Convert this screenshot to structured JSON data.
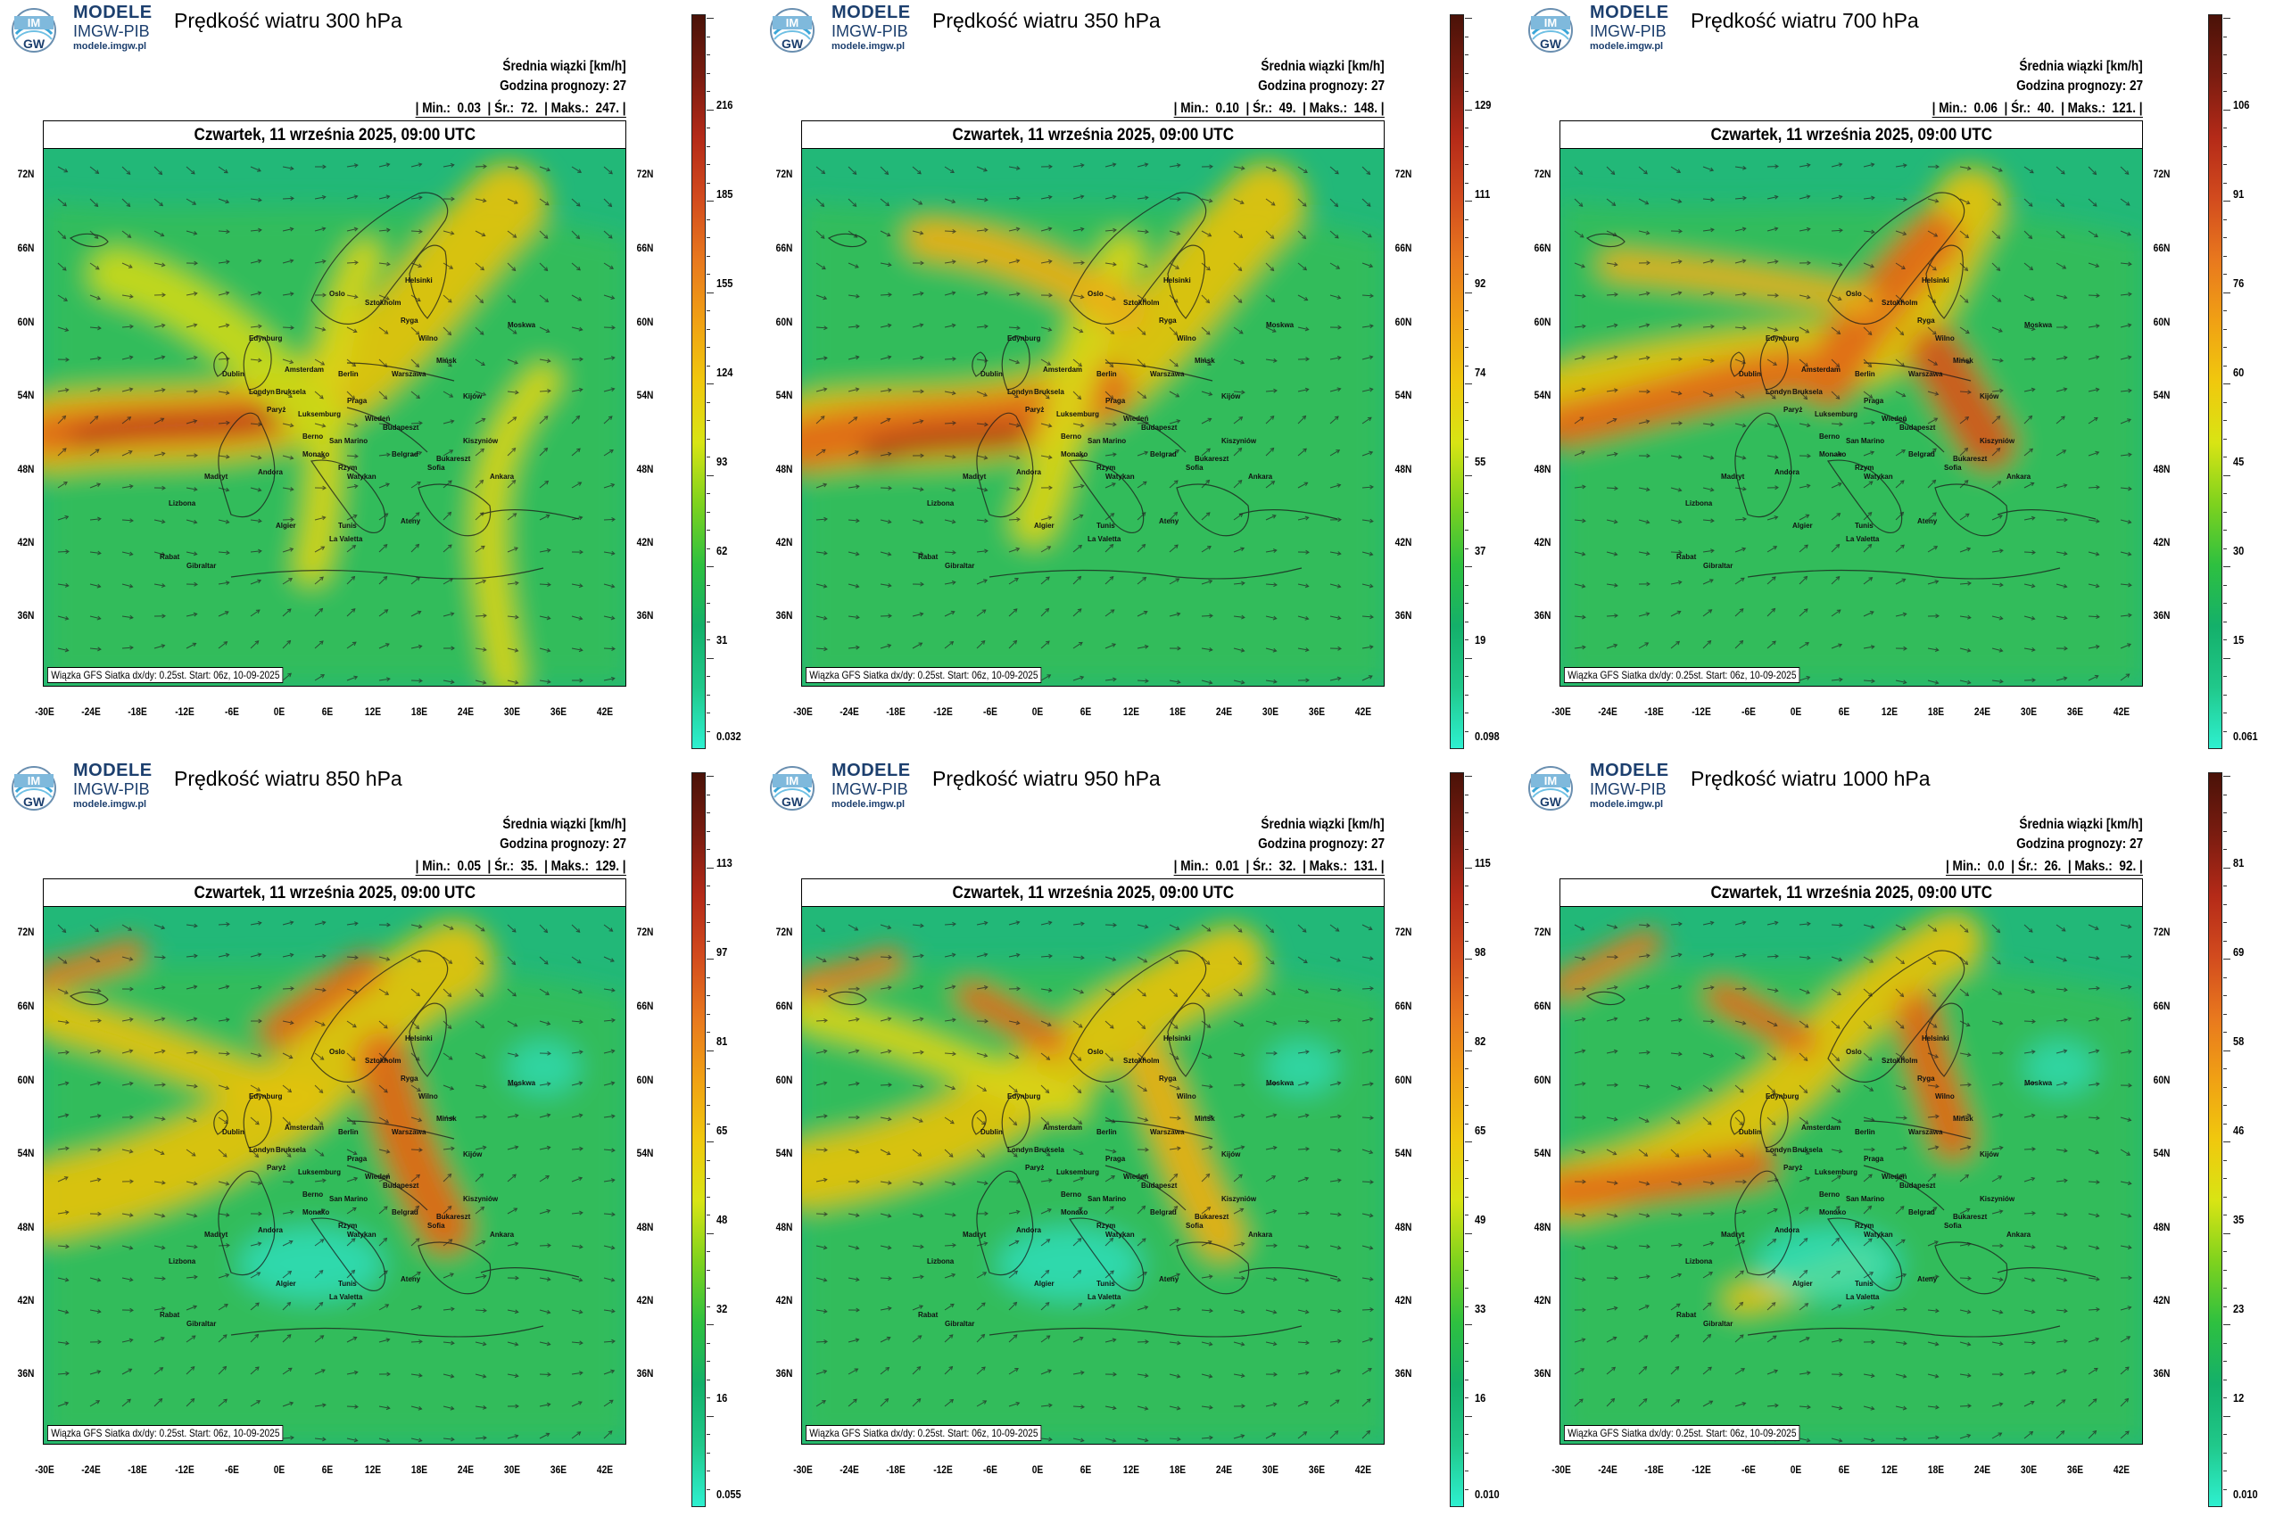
{
  "brand": {
    "line1": "MODELE",
    "line2": "IMGW-PIB",
    "line3": "modele.imgw.pl",
    "logo_text_top": "IM",
    "logo_text_bottom": "GW"
  },
  "common": {
    "avg_label": "Średnia wiązki [km/h]",
    "forecast_hour_label": "Godzina prognozy: 27",
    "date_text": "Czwartek, 11 września 2025, 09:00 UTC",
    "footer_text": "Wiązka GFS Siatka dx/dy: 0.25st. Start: 06z, 10-09-2025",
    "lat_labels": [
      "72N",
      "66N",
      "60N",
      "54N",
      "48N",
      "42N",
      "36N"
    ],
    "lon_labels": [
      "-30E",
      "-24E",
      "-18E",
      "-12E",
      "-6E",
      "0E",
      "6E",
      "12E",
      "18E",
      "24E",
      "30E",
      "36E",
      "42E"
    ],
    "cities": [
      "Oslo",
      "Helsinki",
      "Sztokholm",
      "Ryga",
      "Wilno",
      "Londyn",
      "Berlin",
      "Warszawa",
      "Amsterdam",
      "Bruksela",
      "Paryż",
      "Praga",
      "Luksemburg",
      "Wiedeń",
      "Budapeszt",
      "Berno",
      "Bukareszt",
      "Belgrad",
      "Rzym",
      "Madryt",
      "Lizbona",
      "Ankara",
      "Ateny",
      "Tunis",
      "Algier",
      "La Valetta",
      "Rabat",
      "Gibraltar",
      "Sofia",
      "Kiszyniów",
      "Kijów",
      "Mińsk",
      "Moskwa",
      "Dublin",
      "Edynburg",
      "Andora",
      "Monako",
      "San Marino",
      "Watykan"
    ]
  },
  "colorbar_colors": [
    "#2ef0d0",
    "#20c88a",
    "#14b06a",
    "#2ec040",
    "#7ed21e",
    "#d8e414",
    "#f0c80e",
    "#f0a014",
    "#e8781e",
    "#d24b1e",
    "#b42a18",
    "#7a1c10",
    "#4a1208"
  ],
  "panels": [
    {
      "title": "Prędkość wiatru 300 hPa",
      "min": "0.03",
      "avg": "72.",
      "max": "247.",
      "colorbar_labels": [
        "216",
        "185",
        "155",
        "124",
        "93",
        "62",
        "31",
        "0.032"
      ]
    },
    {
      "title": "Prędkość wiatru 350 hPa",
      "min": "0.10",
      "avg": "49.",
      "max": "148.",
      "colorbar_labels": [
        "129",
        "111",
        "92",
        "74",
        "55",
        "37",
        "19",
        "0.098"
      ]
    },
    {
      "title": "Prędkość wiatru 700 hPa",
      "min": "0.06",
      "avg": "40.",
      "max": "121.",
      "colorbar_labels": [
        "106",
        "91",
        "76",
        "60",
        "45",
        "30",
        "15",
        "0.061"
      ]
    },
    {
      "title": "Prędkość wiatru 850 hPa",
      "min": "0.05",
      "avg": "35.",
      "max": "129.",
      "colorbar_labels": [
        "113",
        "97",
        "81",
        "65",
        "48",
        "32",
        "16",
        "0.055"
      ]
    },
    {
      "title": "Prędkość wiatru 950 hPa",
      "min": "0.01",
      "avg": "32.",
      "max": "131.",
      "colorbar_labels": [
        "115",
        "98",
        "82",
        "65",
        "49",
        "33",
        "16",
        "0.010"
      ]
    },
    {
      "title": "Prędkość wiatru 1000 hPa",
      "min": "0.0",
      "avg": "26.",
      "max": "92.",
      "colorbar_labels": [
        "81",
        "69",
        "58",
        "46",
        "35",
        "23",
        "12",
        "0.010"
      ]
    }
  ]
}
